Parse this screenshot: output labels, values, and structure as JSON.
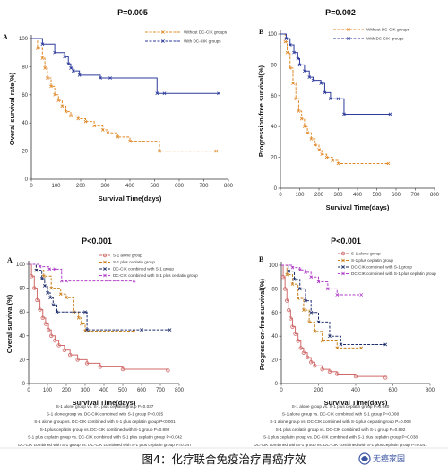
{
  "caption": "图4：化疗联合免疫治疗胃癌疗效",
  "watermark": "无癌家园",
  "colors": {
    "orange": "#e0892a",
    "blue": "#2d3b9c",
    "red": "#d06a6a",
    "darkorange": "#c9801c",
    "navy": "#1d2d6b",
    "purple": "#b040c8"
  },
  "chart_data": [
    {
      "type": "line",
      "panel": "A",
      "title": "P=0.005",
      "xlabel": "Survival Time(days)",
      "ylabel": "Overal survival rate(%)",
      "xlim": [
        0,
        800
      ],
      "ylim": [
        0,
        100
      ],
      "xticks": [
        "0",
        "100",
        "200",
        "300",
        "400",
        "500",
        "600",
        "700",
        "800"
      ],
      "yticks": [
        "0",
        "20",
        "40",
        "60",
        "80",
        "100"
      ],
      "legend_position": "top-right",
      "series": [
        {
          "name": "Without DC-CIK groups",
          "color": "#e0892a",
          "x": [
            0,
            25,
            45,
            55,
            65,
            80,
            95,
            110,
            125,
            140,
            160,
            190,
            220,
            255,
            290,
            310,
            350,
            400,
            520,
            750
          ],
          "y": [
            100,
            93,
            86,
            79,
            72,
            66,
            60,
            56,
            52,
            48,
            45,
            43,
            41,
            38,
            35,
            33,
            30,
            27,
            20,
            20
          ]
        },
        {
          "name": "With DC-CIK groups",
          "color": "#2d3b9c",
          "x": [
            0,
            45,
            95,
            135,
            150,
            160,
            170,
            195,
            280,
            320,
            510,
            540,
            760
          ],
          "y": [
            100,
            96,
            90,
            87,
            82,
            79,
            77,
            74,
            72,
            72,
            61,
            61,
            61
          ]
        }
      ]
    },
    {
      "type": "line",
      "panel": "B",
      "title": "P=0.002",
      "xlabel": "Survival Time(days)",
      "ylabel": "Progression-free survival(%)",
      "xlim": [
        0,
        800
      ],
      "ylim": [
        0,
        100
      ],
      "xticks": [
        "0",
        "100",
        "200",
        "300",
        "400",
        "500",
        "600",
        "700",
        "800"
      ],
      "yticks": [
        "0",
        "20",
        "40",
        "60",
        "80",
        "100"
      ],
      "legend_position": "top-right",
      "series": [
        {
          "name": "Without DC-CIK groups",
          "color": "#e0892a",
          "x": [
            0,
            25,
            35,
            50,
            65,
            80,
            95,
            110,
            125,
            140,
            160,
            180,
            200,
            215,
            240,
            270,
            300,
            560
          ],
          "y": [
            100,
            95,
            88,
            78,
            68,
            58,
            50,
            45,
            40,
            36,
            32,
            28,
            25,
            22,
            20,
            18,
            16,
            16
          ]
        },
        {
          "name": "With DC-CIK groups",
          "color": "#2d3b9c",
          "x": [
            0,
            30,
            50,
            70,
            90,
            100,
            125,
            150,
            170,
            210,
            230,
            260,
            300,
            330,
            570
          ],
          "y": [
            100,
            97,
            93,
            88,
            84,
            80,
            76,
            72,
            70,
            68,
            62,
            58,
            58,
            48,
            48
          ]
        }
      ]
    },
    {
      "type": "line",
      "panel": "A",
      "title": "P<0.001",
      "xlabel": "Survival Time(days)",
      "ylabel": "Overal survival(%)",
      "xlim": [
        0,
        800
      ],
      "ylim": [
        0,
        100
      ],
      "xticks": [
        "0",
        "100",
        "200",
        "300",
        "400",
        "500",
        "600",
        "700",
        "800"
      ],
      "yticks": [
        "0",
        "20",
        "40",
        "60",
        "80",
        "100"
      ],
      "legend_position": "top-right",
      "series": [
        {
          "name": "S-1 alone group",
          "color": "#d06a6a",
          "x": [
            0,
            15,
            30,
            45,
            60,
            75,
            90,
            105,
            120,
            140,
            160,
            190,
            220,
            260,
            310,
            380,
            500,
            740
          ],
          "y": [
            100,
            90,
            80,
            70,
            62,
            55,
            50,
            45,
            40,
            36,
            32,
            28,
            24,
            20,
            17,
            14,
            12,
            11
          ]
        },
        {
          "name": "S-1 plus ceplatin group",
          "color": "#c9801c",
          "x": [
            0,
            40,
            80,
            120,
            170,
            200,
            240,
            265,
            280,
            300,
            560
          ],
          "y": [
            100,
            95,
            90,
            80,
            75,
            72,
            60,
            55,
            50,
            44,
            44
          ]
        },
        {
          "name": "DC-CIK combined with S-1 group",
          "color": "#1d2d6b",
          "x": [
            0,
            40,
            70,
            85,
            100,
            115,
            130,
            150,
            300,
            310,
            600,
            750
          ],
          "y": [
            100,
            95,
            88,
            82,
            76,
            72,
            66,
            60,
            60,
            45,
            45,
            45
          ]
        },
        {
          "name": "DC-CIK combined with S-1 plus ceplatin group",
          "color": "#b040c8",
          "x": [
            0,
            60,
            110,
            140,
            175,
            200,
            560
          ],
          "y": [
            100,
            98,
            96,
            96,
            86,
            86,
            86
          ]
        }
      ]
    },
    {
      "type": "line",
      "panel": "B",
      "title": "P<0.001",
      "xlabel": "Survival Time(days)",
      "ylabel": "Progression-free survival(%)",
      "xlim": [
        0,
        800
      ],
      "ylim": [
        0,
        100
      ],
      "xticks": [
        "0",
        "200",
        "400",
        "600",
        "800"
      ],
      "yticks": [
        "0",
        "20",
        "40",
        "60",
        "80",
        "100"
      ],
      "legend_position": "top-right",
      "series": [
        {
          "name": "S-1 alone group",
          "color": "#d06a6a",
          "x": [
            0,
            10,
            20,
            30,
            40,
            50,
            60,
            75,
            90,
            105,
            120,
            140,
            160,
            180,
            220,
            260,
            300,
            400,
            560
          ],
          "y": [
            100,
            90,
            80,
            70,
            62,
            55,
            48,
            42,
            36,
            30,
            26,
            22,
            18,
            15,
            12,
            10,
            8,
            6,
            5
          ]
        },
        {
          "name": "S-1 plus ceplatin group",
          "color": "#c9801c",
          "x": [
            0,
            30,
            60,
            90,
            120,
            150,
            180,
            220,
            300,
            430
          ],
          "y": [
            100,
            92,
            84,
            72,
            62,
            52,
            44,
            36,
            30,
            30
          ]
        },
        {
          "name": "DC-CIK combined with S-1 group",
          "color": "#1d2d6b",
          "x": [
            0,
            40,
            70,
            100,
            130,
            160,
            200,
            260,
            320,
            560
          ],
          "y": [
            100,
            95,
            88,
            80,
            70,
            60,
            52,
            40,
            33,
            33
          ]
        },
        {
          "name": "DC-CIK combined with S-1 plus ceplatin group",
          "color": "#b040c8",
          "x": [
            0,
            60,
            100,
            130,
            160,
            200,
            250,
            300,
            430
          ],
          "y": [
            100,
            98,
            96,
            94,
            90,
            86,
            80,
            75,
            75
          ]
        }
      ]
    }
  ],
  "stats": {
    "left": [
      "S-1 alone group vs. S-1 plus ceplatin group P=0.037",
      "S-1 alone group vs. DC-CIK combined with S-1 group P=0.025",
      "S-1 alone group vs. DC-CIK combined with S-1 plus ceplatin group P<0.001",
      "S-1 plus ceplatin group vs. DC-CIK combined with S-1 group P=0.892",
      "S-1 plus ceplatin group vs. DC-CIK combined with S-1 plus ceplatin group P=0.042",
      "DC-CIK combined with S-1 group vs. DC-CIK combined with S-1 plus ceplatin group P=0.047"
    ],
    "right": [
      "S-1 alone group vs. S-1 plus ceplatin group P=0.040",
      "S-1 alone group vs. DC-CIK combined with S-1 group P=0.008",
      "S-1 alone group vs. DC-CIK combined with S-1 plus ceplatin group P=0.003",
      "S-1 plus ceplatin group vs. DC-CIK combined with S-1 group P=0.892",
      "S-1 plus ceplatin group vs. DC-CIK combined with S-1 plus ceplatin group P=0.038",
      "DC-CIK combined with S-1 group vs. DC-CIK combined with S-1 plus ceplatin group P=0.041"
    ]
  }
}
